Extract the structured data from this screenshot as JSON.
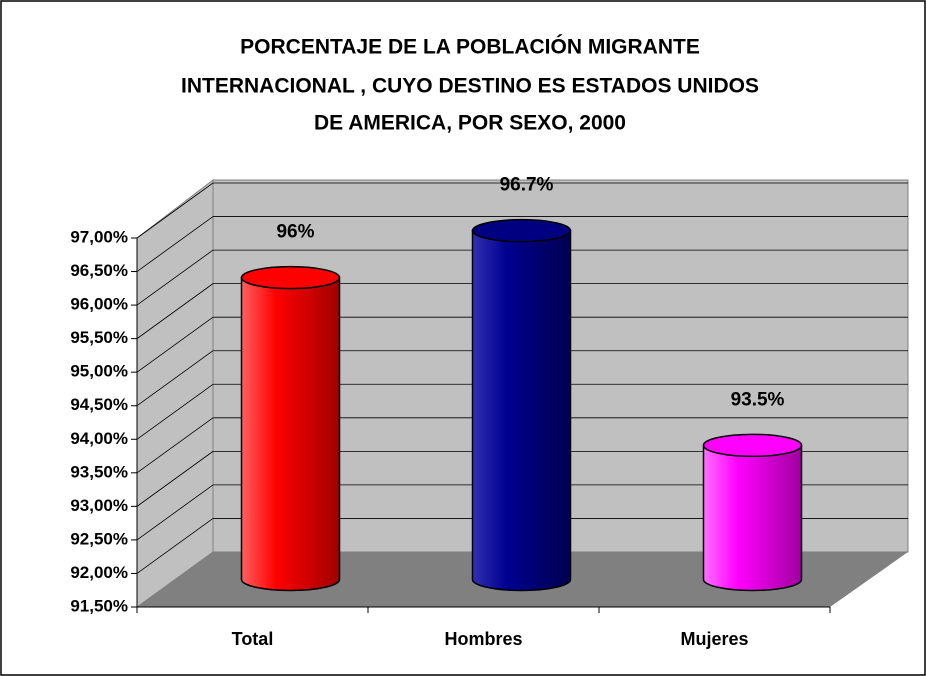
{
  "chart_data": {
    "type": "bar",
    "title": [
      "PORCENTAJE DE LA POBLACIÓN MIGRANTE",
      "INTERNACIONAL , CUYO DESTINO ES ESTADOS UNIDOS",
      "DE AMERICA, POR SEXO, 2000"
    ],
    "categories": [
      "Total",
      "Hombres",
      "Mujeres"
    ],
    "values": [
      96,
      96.7,
      93.5
    ],
    "value_labels": [
      "96%",
      "96.7%",
      "93.5%"
    ],
    "colors": [
      "#ff0000",
      "#000080",
      "#ff00ff"
    ],
    "ylim": [
      91.5,
      97
    ],
    "yticks": [
      {
        "value": 91.5,
        "label": "91,50%"
      },
      {
        "value": 92,
        "label": "92,00%"
      },
      {
        "value": 92.5,
        "label": "92,50%"
      },
      {
        "value": 93,
        "label": "93,00%"
      },
      {
        "value": 93.5,
        "label": "93,50%"
      },
      {
        "value": 94,
        "label": "94,00%"
      },
      {
        "value": 94.5,
        "label": "94,50%"
      },
      {
        "value": 95,
        "label": "95,00%"
      },
      {
        "value": 95.5,
        "label": "95,50%"
      },
      {
        "value": 96,
        "label": "96,00%"
      },
      {
        "value": 96.5,
        "label": "96,50%"
      },
      {
        "value": 97,
        "label": "97,00%"
      }
    ],
    "grid": true
  }
}
